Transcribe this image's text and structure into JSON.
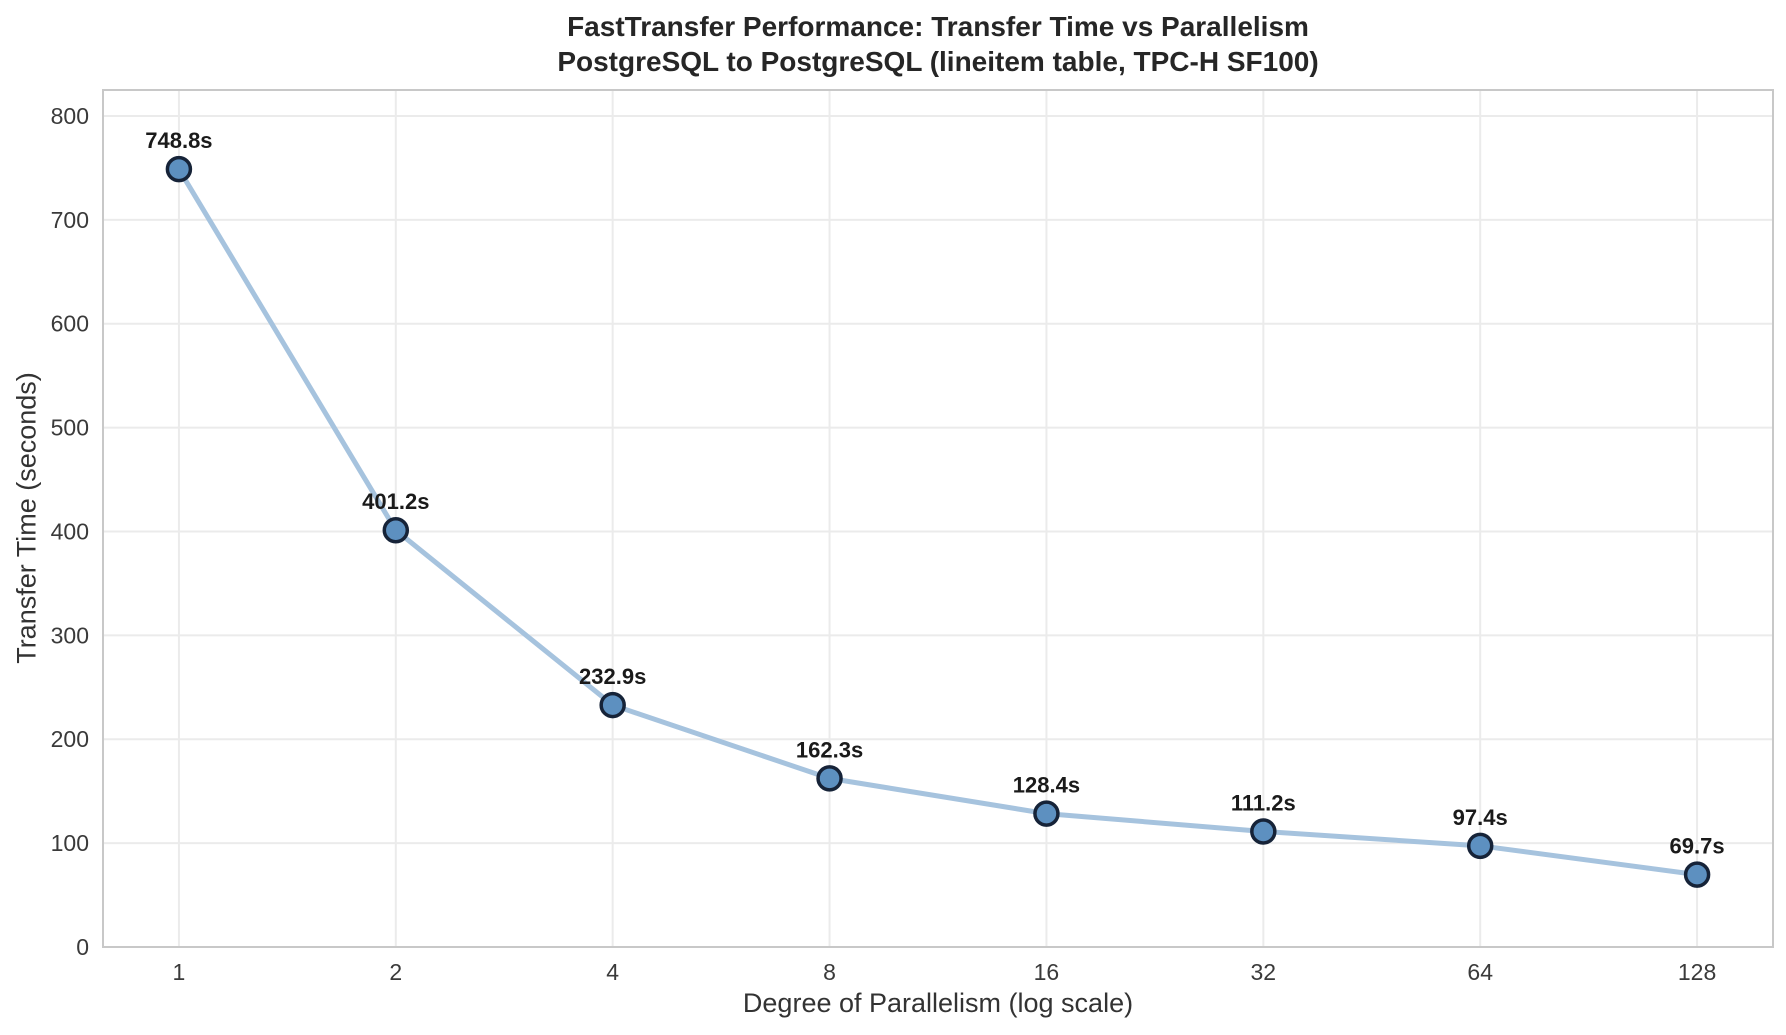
{
  "chart_data": {
    "type": "line",
    "title": "FastTransfer Performance: Transfer Time vs Parallelism",
    "subtitle": "PostgreSQL to PostgreSQL (lineitem table, TPC-H SF100)",
    "xlabel": "Degree of Parallelism (log scale)",
    "ylabel": "Transfer Time (seconds)",
    "x_scale": "log2",
    "x": [
      1,
      2,
      4,
      8,
      16,
      32,
      64,
      128
    ],
    "x_tick_labels": [
      "1",
      "2",
      "4",
      "8",
      "16",
      "32",
      "64",
      "128"
    ],
    "y_ticks": [
      0,
      100,
      200,
      300,
      400,
      500,
      600,
      700,
      800
    ],
    "ylim": [
      0,
      825
    ],
    "x_margin_log2": 0.35,
    "grid": true,
    "legend_position": "none",
    "series": [
      {
        "name": "transfer-time-seconds",
        "values": [
          748.8,
          401.2,
          232.9,
          162.3,
          128.4,
          111.2,
          97.4,
          69.7
        ],
        "point_labels": [
          "748.8s",
          "401.2s",
          "232.9s",
          "162.3s",
          "128.4s",
          "111.2s",
          "97.4s",
          "69.7s"
        ]
      }
    ],
    "colors": {
      "line": "#a6c3de",
      "marker_fill": "#5d90c0",
      "marker_edge": "#162338",
      "grid": "#ebebeb",
      "spine": "#c8c8c8",
      "tick_text": "#3a3a3a",
      "point_label_text": "#1a1a1a",
      "title_text": "#262626"
    }
  }
}
